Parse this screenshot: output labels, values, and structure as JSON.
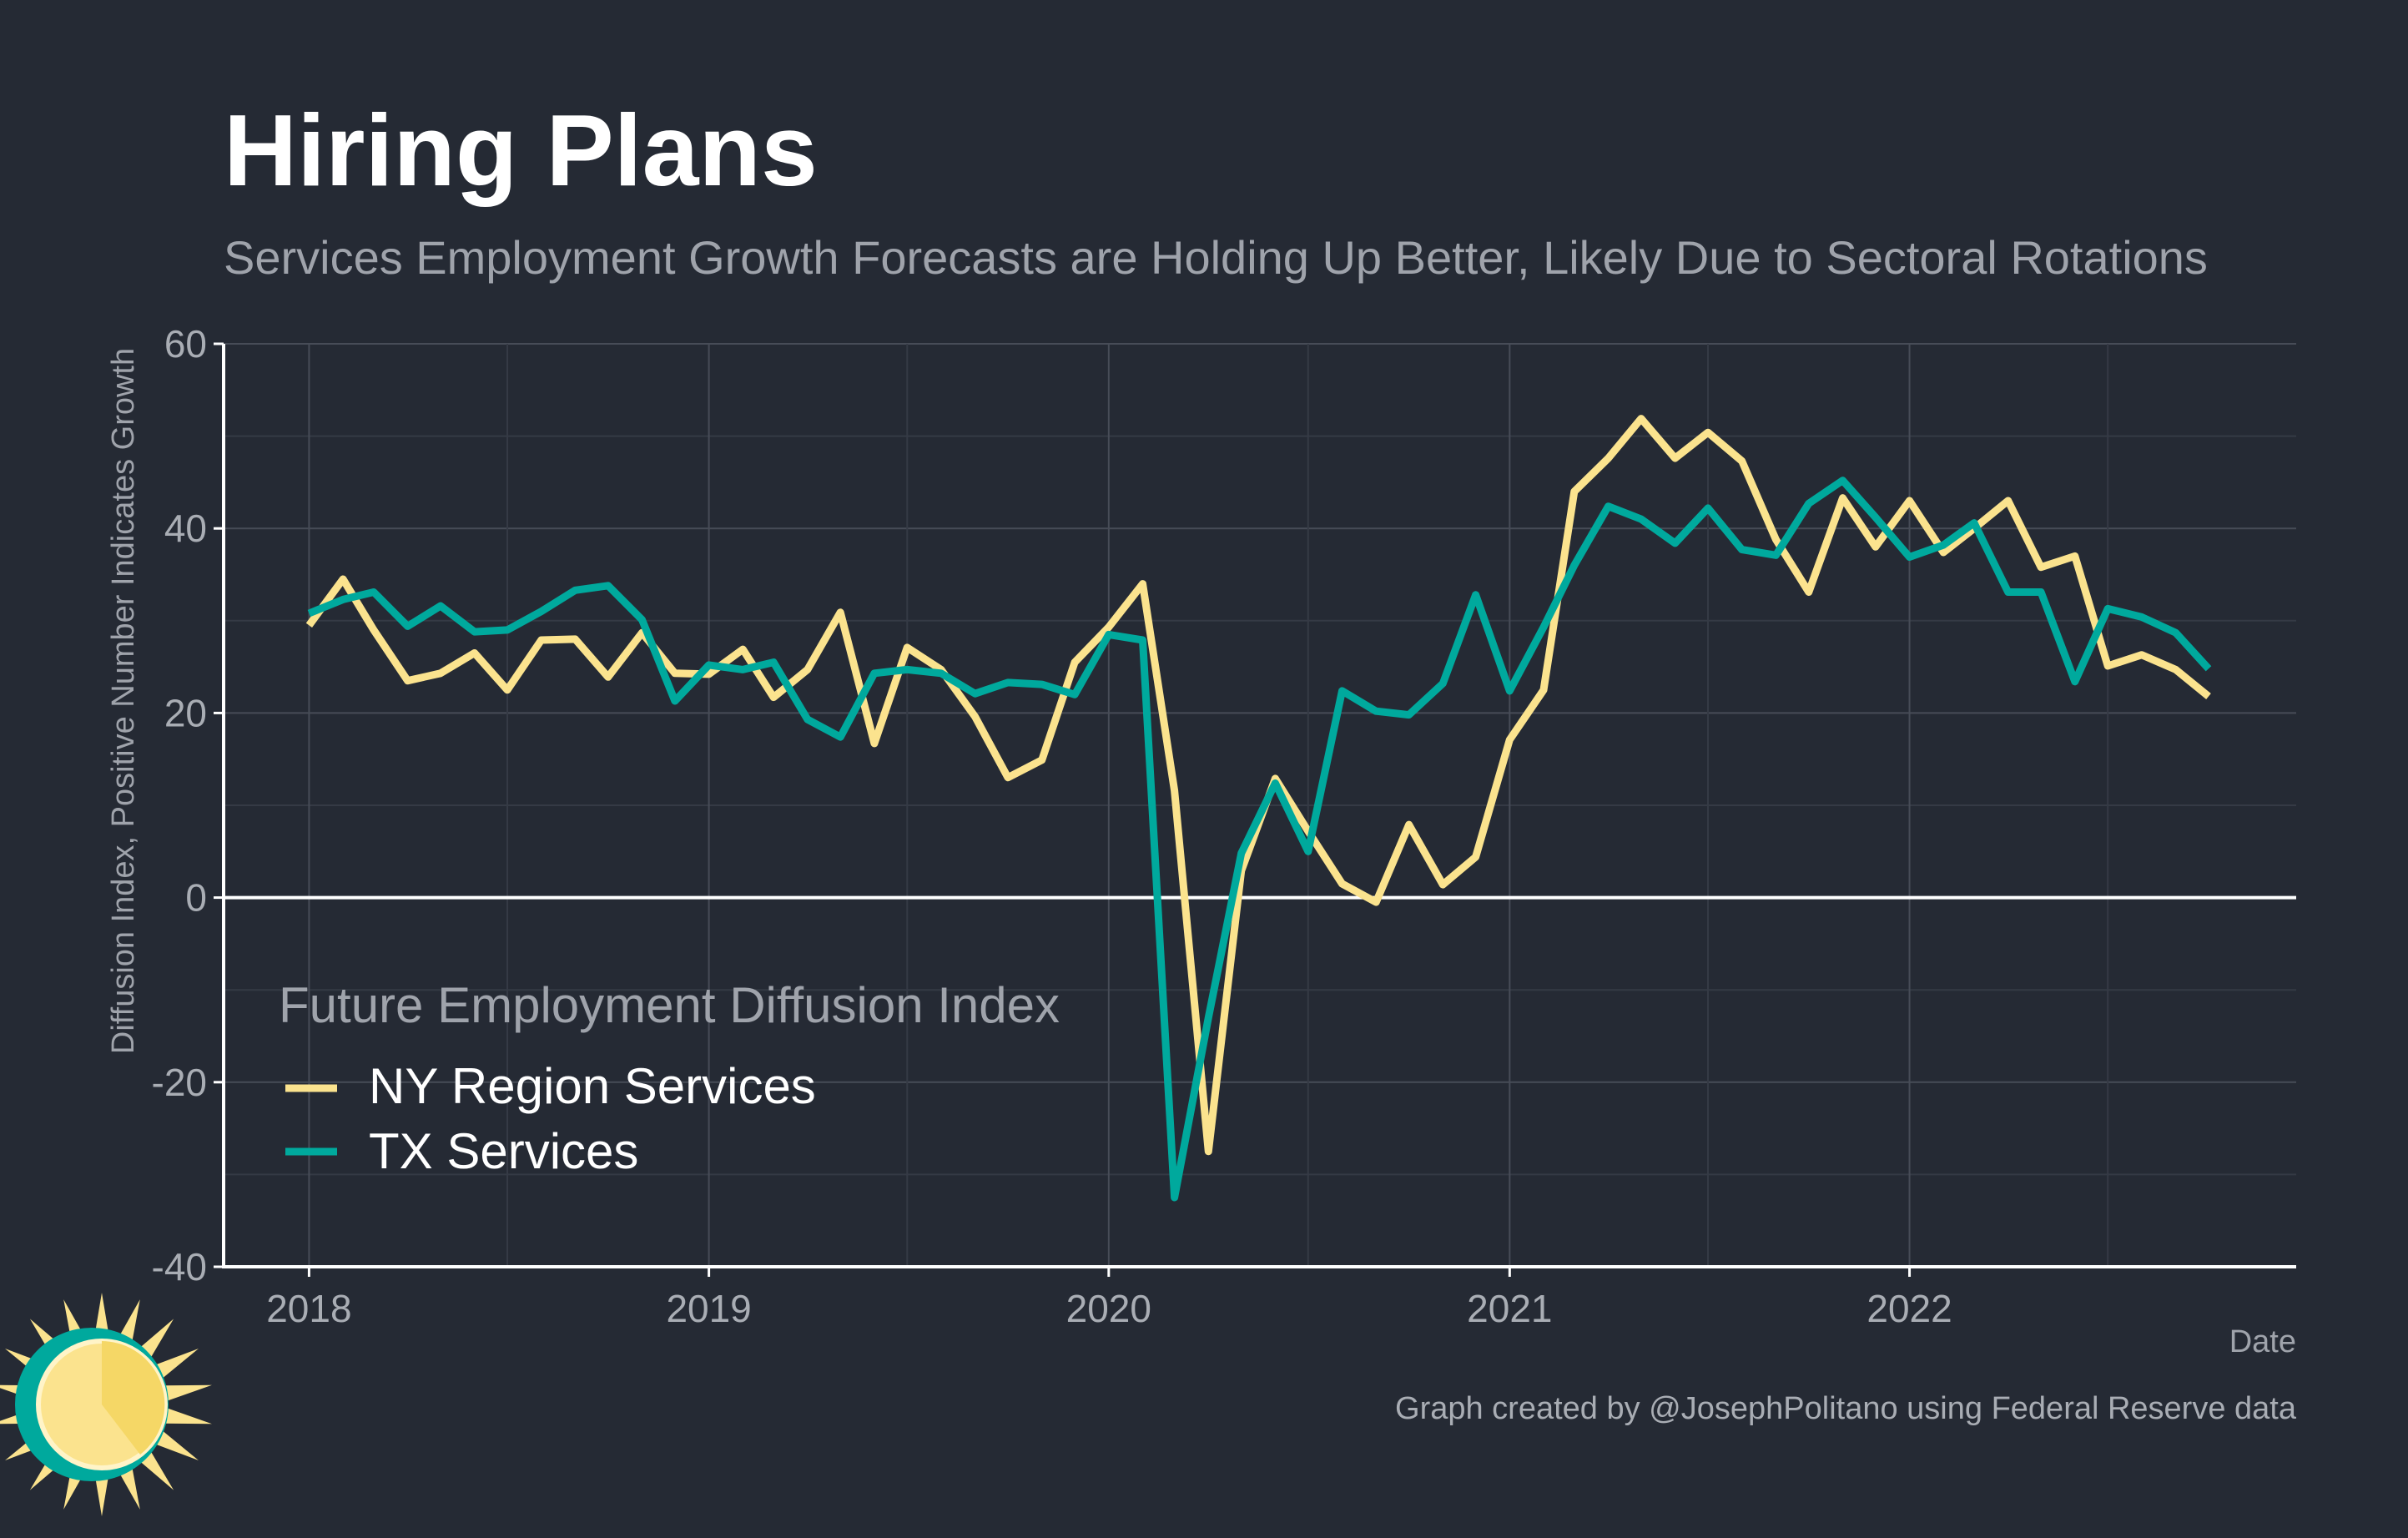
{
  "colors": {
    "background": "#252a34",
    "grid_major": "#474c57",
    "grid_minor": "#353a45",
    "axis": "#ffffff",
    "zero_line": "#ffffff",
    "logo_yellow": "#fbe38e",
    "logo_teal": "#00a99d"
  },
  "chart_data": {
    "type": "line",
    "title": "Hiring Plans",
    "subtitle": "Services Employment Growth Forecasts are Holding Up Better, Likely Due to Sectoral Rotations",
    "xlabel": "Date",
    "ylabel": "Diffusion Index, Positive Number Indicates Growth",
    "caption": "Graph created by @JosephPolitano using Federal Reserve data",
    "xlim": [
      "2017-10-15",
      "2022-12-20"
    ],
    "ylim": [
      -40,
      60
    ],
    "x_ticks": [
      "2018-01-01",
      "2019-01-01",
      "2020-01-01",
      "2021-01-01",
      "2022-01-01"
    ],
    "x_tick_labels": [
      "2018",
      "2019",
      "2020",
      "2021",
      "2022"
    ],
    "y_ticks": [
      -40,
      -20,
      0,
      20,
      40,
      60
    ],
    "y_tick_labels": [
      "-40",
      "-20",
      "0",
      "20",
      "40",
      "60"
    ],
    "grid": true,
    "legend": {
      "title": "Future Employment Diffusion Index",
      "position": "bottom-left"
    },
    "x": [
      "2018-01",
      "2018-02",
      "2018-03",
      "2018-04",
      "2018-05",
      "2018-06",
      "2018-07",
      "2018-08",
      "2018-09",
      "2018-10",
      "2018-11",
      "2018-12",
      "2019-01",
      "2019-02",
      "2019-03",
      "2019-04",
      "2019-05",
      "2019-06",
      "2019-07",
      "2019-08",
      "2019-09",
      "2019-10",
      "2019-11",
      "2019-12",
      "2020-01",
      "2020-02",
      "2020-03",
      "2020-04",
      "2020-05",
      "2020-06",
      "2020-07",
      "2020-08",
      "2020-09",
      "2020-10",
      "2020-11",
      "2020-12",
      "2021-01",
      "2021-02",
      "2021-03",
      "2021-04",
      "2021-05",
      "2021-06",
      "2021-07",
      "2021-08",
      "2021-09",
      "2021-10",
      "2021-11",
      "2021-12",
      "2022-01",
      "2022-02",
      "2022-03",
      "2022-04",
      "2022-05",
      "2022-06",
      "2022-07",
      "2022-08",
      "2022-09",
      "2022-10"
    ],
    "series": [
      {
        "name": "NY Region Services",
        "color": "#fbe38e",
        "values": [
          29.5,
          34.5,
          29,
          23.5,
          24.3,
          26.5,
          22.5,
          27.9,
          28,
          23.9,
          28.7,
          24.3,
          24.2,
          26.9,
          21.7,
          24.7,
          30.9,
          16.7,
          27.1,
          24.7,
          19.6,
          13,
          14.9,
          25.5,
          29.3,
          34,
          11.6,
          -27.5,
          2.9,
          12.9,
          7.2,
          1.5,
          -0.5,
          7.9,
          1.4,
          4.4,
          17.1,
          22.5,
          44,
          47.6,
          51.9,
          47.6,
          50.4,
          47.3,
          38.8,
          33.1,
          43.3,
          38,
          43,
          37.4,
          40,
          43,
          35.8,
          37,
          25.1,
          26.3,
          24.7,
          21.8
        ]
      },
      {
        "name": "TX Services",
        "color": "#00a99d",
        "values": [
          30.8,
          32.3,
          33.1,
          29.4,
          31.6,
          28.8,
          29,
          31,
          33.3,
          33.8,
          30.1,
          21.3,
          25.2,
          24.7,
          25.5,
          19.3,
          17.4,
          24.3,
          24.7,
          24.3,
          22.1,
          23.3,
          23.1,
          22,
          28.5,
          27.9,
          -32.5,
          -13,
          4.8,
          12.4,
          5,
          22.4,
          20.2,
          19.8,
          23.2,
          32.8,
          22.4,
          29.3,
          36,
          42.4,
          41,
          38.4,
          42.2,
          37.7,
          37.1,
          42.7,
          45.2,
          41.2,
          36.9,
          38.2,
          40.6,
          33.1,
          33.1,
          23.4,
          31.3,
          30.4,
          28.7,
          24.8
        ]
      }
    ]
  }
}
